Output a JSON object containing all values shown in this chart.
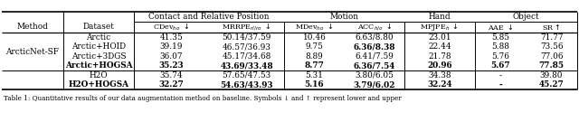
{
  "col_groups_labels": [
    "Contact and Relative Position",
    "Motion",
    "Hand",
    "Object"
  ],
  "col_headers": [
    "CDev$_{ho}$ ↓",
    "MRRPE$_{rl/ro}$ ↓",
    "MDev$_{ho}$ ↓",
    "ACC$_{h/o}$ ↓",
    "MPJPE$_{h}$ ↓",
    "AAE ↓",
    "SR↑"
  ],
  "method_label": "ArcticNet-SF",
  "rows": [
    {
      "dataset": "Arctic",
      "vals": [
        "41.35",
        "50.14/37.59",
        "10.46",
        "6.63/8.80",
        "23.01",
        "5.85",
        "71.77"
      ],
      "bold_cols": []
    },
    {
      "dataset": "Arctic+HOID",
      "vals": [
        "39.19",
        "46.57/36.93",
        "9.75",
        "6.36/8.38",
        "22.44",
        "5.88",
        "73.56"
      ],
      "bold_cols": [
        3
      ]
    },
    {
      "dataset": "Arctic+3DGS",
      "vals": [
        "36.07",
        "45.17/34.68",
        "8.89",
        "6.41/7.59",
        "21.78",
        "5.76",
        "77.06"
      ],
      "bold_cols": []
    },
    {
      "dataset": "Arctic+HOGSA",
      "vals": [
        "35.23",
        "43.69/33.48",
        "8.77",
        "6.36/7.54",
        "20.96",
        "5.67",
        "77.85"
      ],
      "bold_cols": [
        0,
        1,
        2,
        3,
        4,
        5,
        6
      ]
    },
    {
      "dataset": "H2O",
      "vals": [
        "35.74",
        "57.65/47.53",
        "5.31",
        "3.80/6.05",
        "34.38",
        "-",
        "39.80"
      ],
      "bold_cols": []
    },
    {
      "dataset": "H2O+HOGSA",
      "vals": [
        "32.27",
        "54.63/43.93",
        "5.16",
        "3.79/6.02",
        "32.24",
        "-",
        "45.27"
      ],
      "bold_cols": [
        0,
        1,
        2,
        3,
        4,
        6
      ]
    }
  ],
  "caption": "Table 1: Quantitative results of our data augmentation method on baseline. Symbols ↓ and ↑ represent lower and upper",
  "bold_row_indices": [
    3,
    5
  ],
  "bg_color": "#ffffff"
}
